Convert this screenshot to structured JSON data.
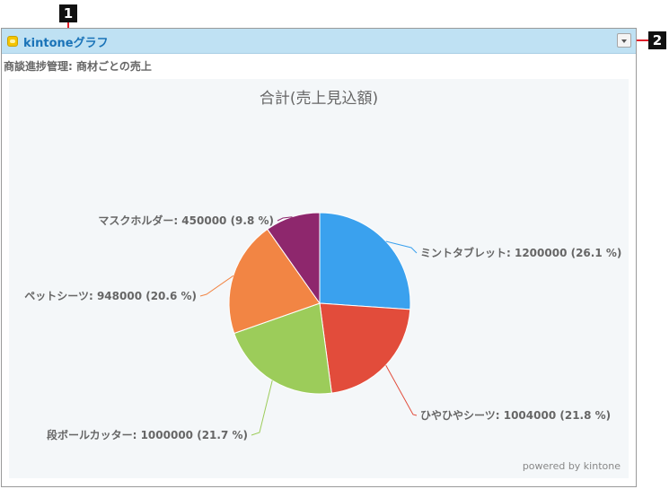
{
  "callouts": {
    "c1": "1",
    "c2": "2"
  },
  "widget": {
    "title": "kintoneグラフ",
    "icon": "kintone-app-icon",
    "subtitle": "商談進捗管理: 商材ごとの売上",
    "menu_icon": "chevron-down-icon",
    "powered_by": "powered by kintone"
  },
  "chart_data": {
    "type": "pie",
    "title": "合計(売上見込額)",
    "slices": [
      {
        "label": "ミントタブレット: 1200000 (26.1 %)",
        "name": "ミントタブレット",
        "value": 1200000,
        "percent": 26.1,
        "color": "#3aa1ee"
      },
      {
        "label": "ひやひやシーツ: 1004000 (21.8 %)",
        "name": "ひやひやシーツ",
        "value": 1004000,
        "percent": 21.8,
        "color": "#e24c3b"
      },
      {
        "label": "段ボールカッター: 1000000 (21.7 %)",
        "name": "段ボールカッター",
        "value": 1000000,
        "percent": 21.7,
        "color": "#9ccc5a"
      },
      {
        "label": "ペットシーツ: 948000 (20.6 %)",
        "name": "ペットシーツ",
        "value": 948000,
        "percent": 20.6,
        "color": "#f28544"
      },
      {
        "label": "マスクホルダー: 450000 (9.8 %)",
        "name": "マスクホルダー",
        "value": 450000,
        "percent": 9.8,
        "color": "#8e276d"
      }
    ]
  }
}
